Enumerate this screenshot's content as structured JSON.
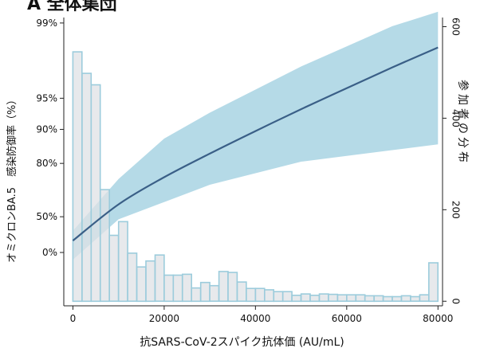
{
  "panel_title": "A 全体集団",
  "chart_data": {
    "type": "histogram+line",
    "title": "A 全体集団",
    "xlabel": "抗SARS-CoV-2スパイク抗体価 (AU/mL)",
    "ylabel_left": "オミクロンBA.5　感染防御率（%）",
    "ylabel_right": "参加者の分布",
    "xlim": [
      -2000,
      81000
    ],
    "x_ticks": [
      0,
      20000,
      40000,
      60000,
      80000
    ],
    "x_tick_labels": [
      "0",
      "20000",
      "40000",
      "60000",
      "80000"
    ],
    "y_left_ticks": [
      "99%",
      "95%",
      "90%",
      "80%",
      "50%",
      "0%"
    ],
    "y_right_lim": [
      -10,
      620
    ],
    "y_right_ticks": [
      0,
      200,
      400,
      600
    ],
    "y_right_tick_labels": [
      "0",
      "200",
      "400",
      "600"
    ],
    "histogram": {
      "bin_width": 2000,
      "bin_starts": [
        0,
        2000,
        4000,
        6000,
        8000,
        10000,
        12000,
        14000,
        16000,
        18000,
        20000,
        22000,
        24000,
        26000,
        28000,
        30000,
        32000,
        34000,
        36000,
        38000,
        40000,
        42000,
        44000,
        46000,
        48000,
        50000,
        52000,
        54000,
        56000,
        58000,
        60000,
        62000,
        64000,
        66000,
        68000,
        70000,
        72000,
        74000,
        76000,
        78000
      ],
      "counts": [
        545,
        498,
        473,
        244,
        144,
        174,
        105,
        75,
        88,
        101,
        57,
        57,
        59,
        29,
        41,
        34,
        65,
        63,
        42,
        28,
        28,
        25,
        21,
        21,
        13,
        16,
        13,
        16,
        15,
        14,
        14,
        14,
        12,
        12,
        10,
        10,
        12,
        10,
        14,
        84
      ]
    },
    "series": [
      {
        "name": "",
        "x": [
          0,
          10000,
          20000,
          30000,
          40000,
          50000,
          60000,
          70000,
          80000
        ],
        "y_axis_position": [
          0.226,
          0.352,
          0.446,
          0.528,
          0.606,
          0.682,
          0.755,
          0.827,
          0.896
        ],
        "ci_upper": [
          0.26,
          0.44,
          0.58,
          0.67,
          0.75,
          0.83,
          0.9,
          0.97,
          1.02
        ],
        "ci_lower": [
          0.16,
          0.3,
          0.36,
          0.42,
          0.46,
          0.5,
          0.52,
          0.54,
          0.56
        ]
      }
    ],
    "colors": {
      "line": "#3a5f87",
      "band": "#a8d3e3",
      "bar_fill": "#dfe2e5",
      "bar_edge": "#9cccdc"
    },
    "grid": false
  }
}
